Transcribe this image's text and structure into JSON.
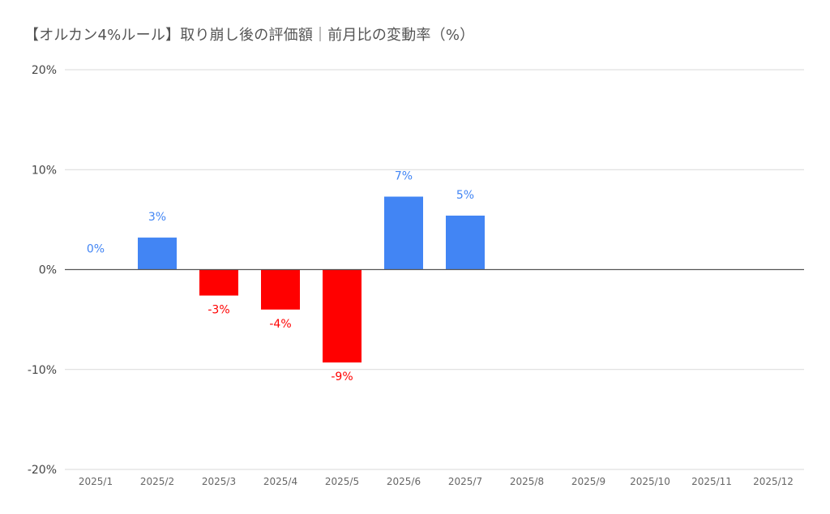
{
  "title": "【オルカン4%ルール】取り崩し後の評価額｜前月比の変動率（%）",
  "colors": {
    "positive": "#4285f4",
    "negative": "#ff0000",
    "grid": "#d9d9d9",
    "zero_line": "#555555",
    "tick_text": "#444444",
    "category_text": "#666666"
  },
  "chart_data": {
    "type": "bar",
    "title": "【オルカン4%ルール】取り崩し後の評価額｜前月比の変動率（%）",
    "categories": [
      "2025/1",
      "2025/2",
      "2025/3",
      "2025/4",
      "2025/5",
      "2025/6",
      "2025/7",
      "2025/8",
      "2025/9",
      "2025/10",
      "2025/11",
      "2025/12"
    ],
    "values": [
      0,
      3.2,
      -2.6,
      -4.0,
      -9.3,
      7.3,
      5.4,
      null,
      null,
      null,
      null,
      null
    ],
    "data_labels": [
      "0%",
      "3%",
      "-3%",
      "-4%",
      "-9%",
      "7%",
      "5%",
      "",
      "",
      "",
      "",
      ""
    ],
    "ylim": [
      -20,
      20
    ],
    "y_ticks": [
      20,
      10,
      0,
      -10,
      -20
    ],
    "y_tick_labels": [
      "20%",
      "10%",
      "0%",
      "-10%",
      "-20%"
    ],
    "grid": true,
    "legend": "none"
  }
}
